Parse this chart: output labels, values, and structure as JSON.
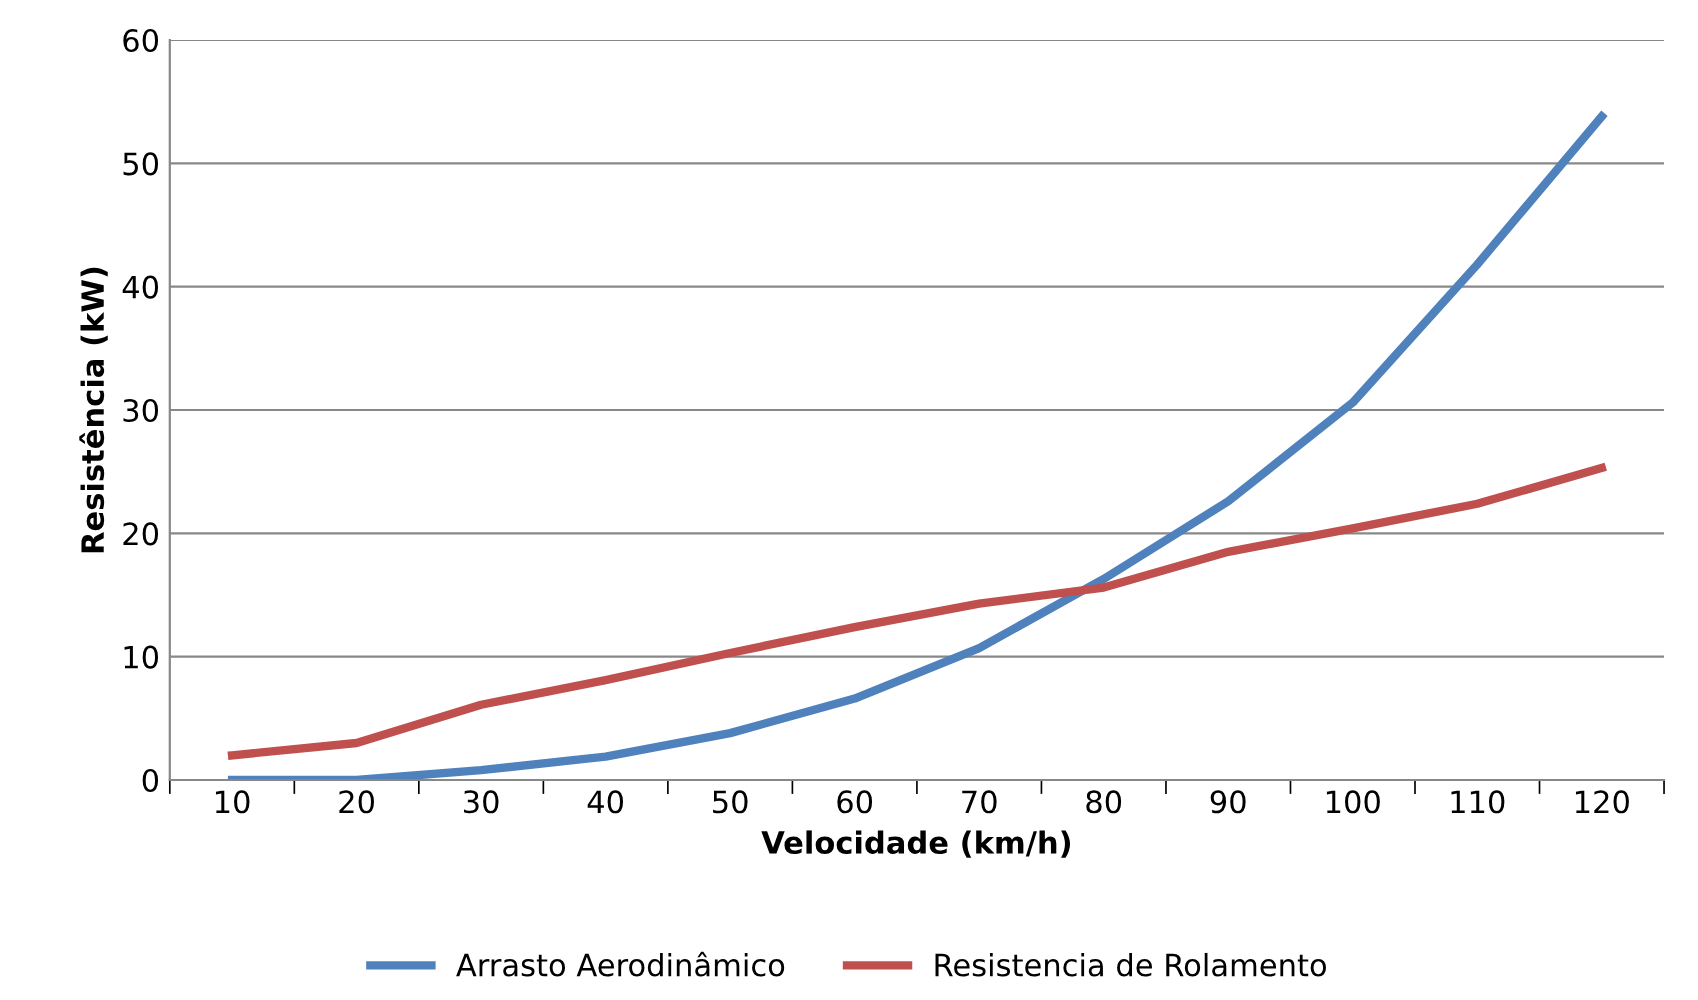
{
  "chart_data": {
    "type": "line",
    "xlabel": "Velocidade (km/h)",
    "ylabel": "Resistência (kW)",
    "categories": [
      "10",
      "20",
      "30",
      "40",
      "50",
      "60",
      "70",
      "80",
      "90",
      "100",
      "110",
      "120"
    ],
    "series": [
      {
        "name": "Arrasto Aerodinâmico",
        "color": "#4f81bd",
        "values": [
          0,
          0,
          0.8,
          1.9,
          3.8,
          6.6,
          10.7,
          16.3,
          22.6,
          30.6,
          41.8,
          53.8
        ]
      },
      {
        "name": "Resistencia de Rolamento",
        "color": "#c0504d",
        "values": [
          2.0,
          3.0,
          6.1,
          8.1,
          10.3,
          12.4,
          14.3,
          15.6,
          18.5,
          20.4,
          22.4,
          25.3
        ]
      }
    ],
    "ylim": [
      0,
      60
    ],
    "yticks": [
      0,
      10,
      20,
      30,
      40,
      50,
      60
    ],
    "grid": "y",
    "legend": "bottom",
    "marker": "none",
    "line_style": "solid"
  }
}
